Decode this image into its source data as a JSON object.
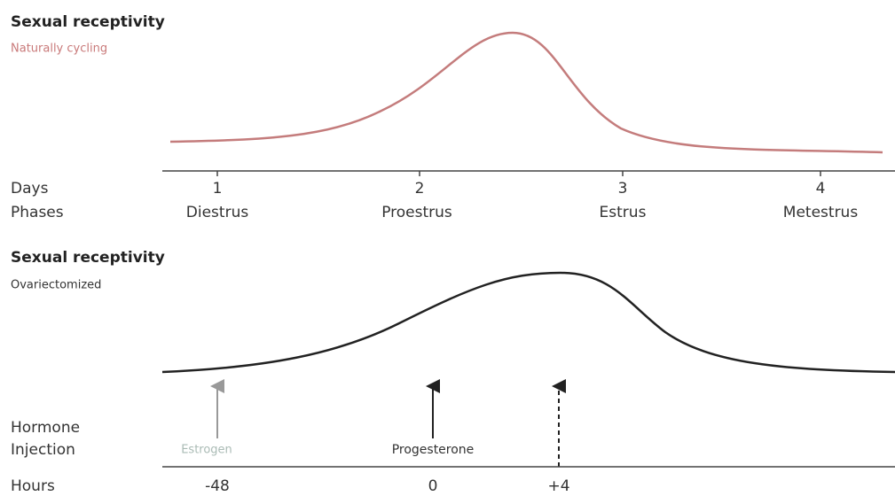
{
  "top": {
    "title": "Sexual receptivity",
    "subtitle": "Naturally cycling",
    "days_label": "Days",
    "phases_label": "Phases",
    "days": [
      "1",
      "2",
      "3",
      "4"
    ],
    "phases": [
      "Diestrus",
      "Proestrus",
      "Estrus",
      "Metestrus"
    ]
  },
  "bottom": {
    "title": "Sexual receptivity",
    "subtitle": "Ovariectomized",
    "injection_label": [
      "Hormone",
      "Injection"
    ],
    "injections": [
      "Estrogen",
      "Progesterone"
    ],
    "hours_label": "Hours",
    "hours": [
      "-48",
      "0",
      "+4"
    ]
  }
}
